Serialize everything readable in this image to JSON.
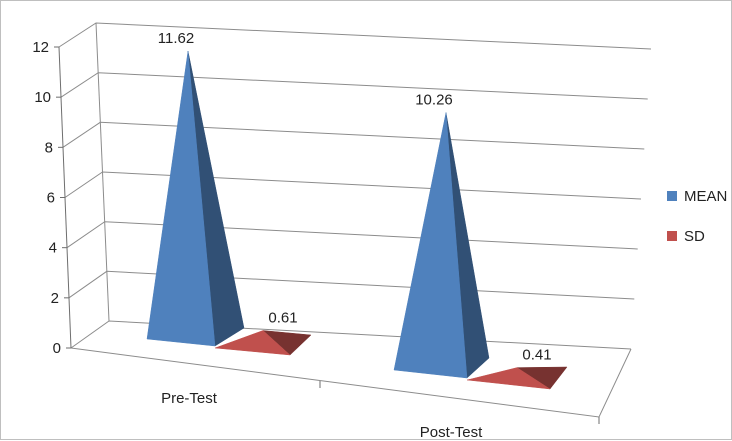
{
  "chart_data": {
    "type": "bar",
    "title": "",
    "xlabel": "",
    "ylabel": "",
    "ylim": [
      0,
      12
    ],
    "yticks": [
      0,
      2,
      4,
      6,
      8,
      10,
      12
    ],
    "grid": true,
    "legend_position": "right",
    "categories": [
      "Pre-Test",
      "Post-Test"
    ],
    "series": [
      {
        "name": "MEAN",
        "values": [
          11.62,
          10.26
        ],
        "color": "#4f81bd"
      },
      {
        "name": "SD",
        "values": [
          0.61,
          0.41
        ],
        "color": "#c0504d"
      }
    ],
    "data_labels": [
      [
        "11.62",
        "10.26"
      ],
      [
        "0.61",
        "0.41"
      ]
    ]
  }
}
